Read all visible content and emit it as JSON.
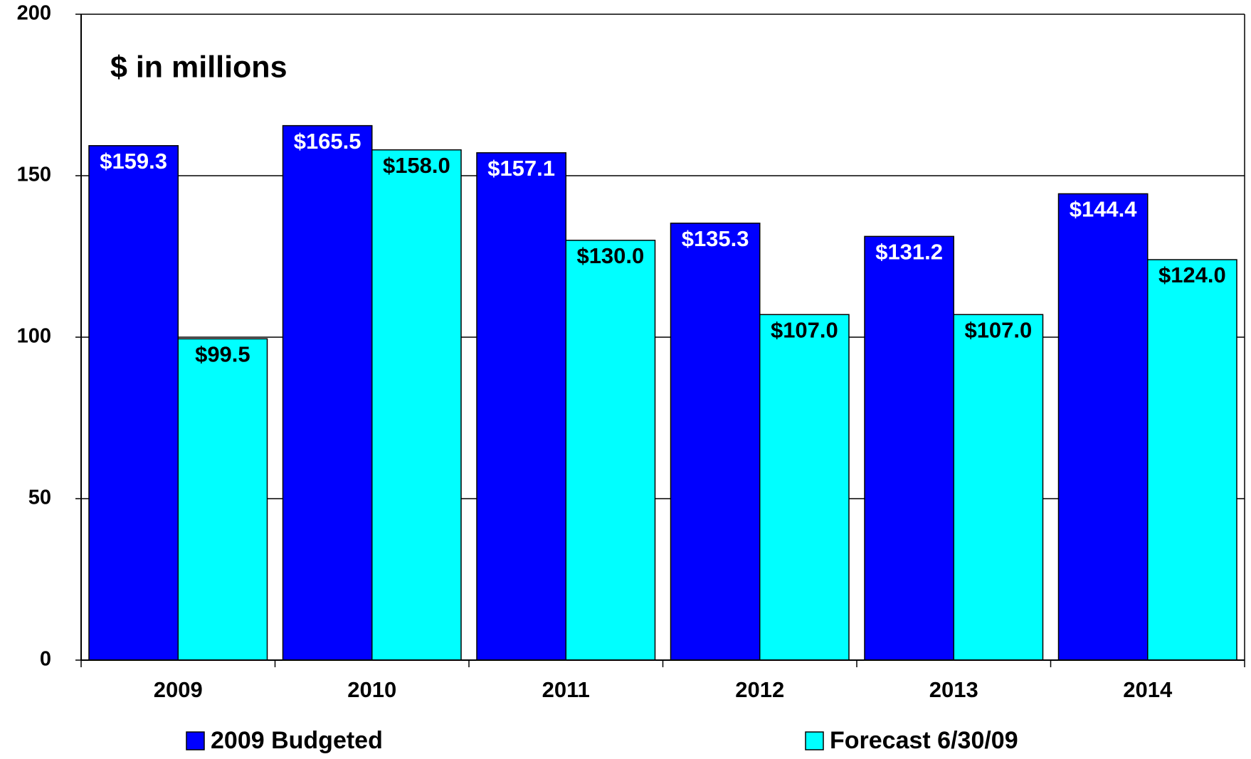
{
  "chart_data": {
    "type": "bar",
    "annotation": "$ in millions",
    "categories": [
      "2009",
      "2010",
      "2011",
      "2012",
      "2013",
      "2014"
    ],
    "series": [
      {
        "name": "2009 Budgeted",
        "color": "#0000ff",
        "label_color": "#ffffff",
        "values": [
          159.3,
          165.5,
          157.1,
          135.3,
          131.2,
          144.4
        ],
        "value_labels": [
          "$159.3",
          "$165.5",
          "$157.1",
          "$135.3",
          "$131.2",
          "$144.4"
        ]
      },
      {
        "name": "Forecast 6/30/09",
        "color": "#00ffff",
        "label_color": "#000000",
        "values": [
          99.5,
          158.0,
          130.0,
          107.0,
          107.0,
          124.0
        ],
        "value_labels": [
          "$99.5",
          "$158.0",
          "$130.0",
          "$107.0",
          "$107.0",
          "$124.0"
        ]
      }
    ],
    "ylim": [
      0,
      200
    ],
    "yticks": [
      0,
      50,
      100,
      150,
      200
    ],
    "grid": true
  }
}
